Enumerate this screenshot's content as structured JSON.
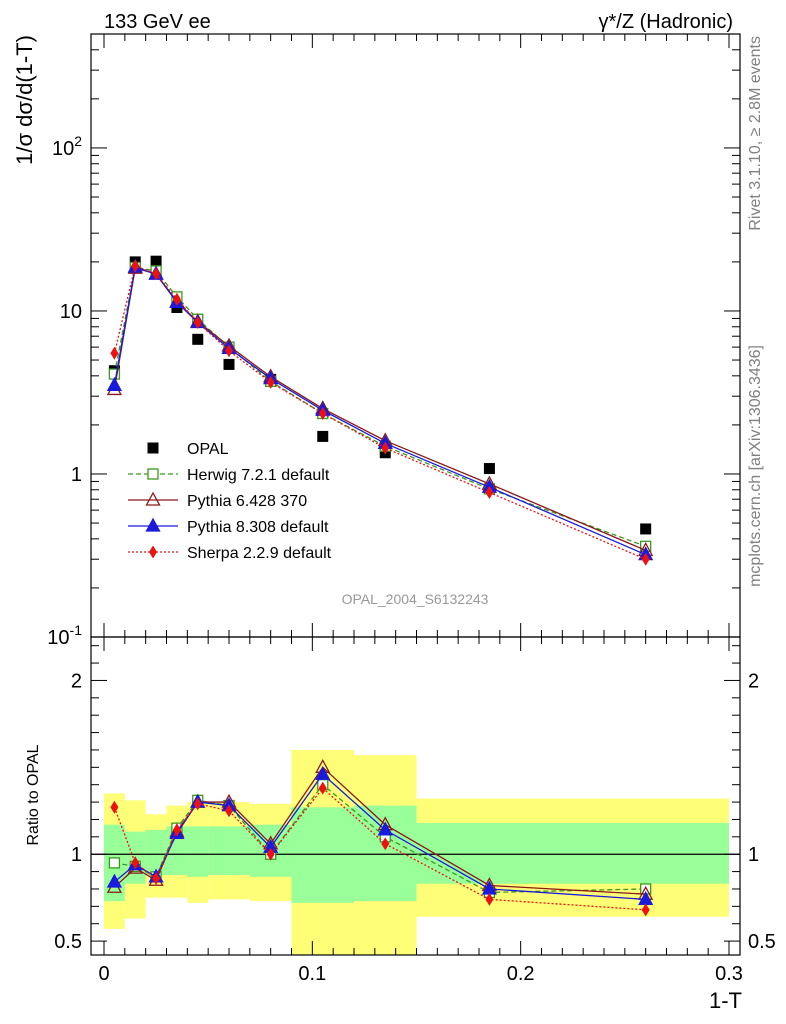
{
  "header": {
    "left": "133 GeV ee",
    "right": "γ*/Z (Hadronic)"
  },
  "side_labels": {
    "rivet": "Rivet 3.1.10, ≥ 2.8M events",
    "mcplots": "mcplots.cern.ch [arXiv:1306.3436]"
  },
  "chart_data": [
    {
      "type": "scatter",
      "panel": "main",
      "ylabel": "1/σ dσ/d(1-T)",
      "yscale": "log",
      "ylim": [
        0.1,
        500
      ],
      "xlim": [
        -0.007,
        0.3
      ],
      "y_tick_labels": [
        "10^-1",
        "1",
        "10",
        "10^2"
      ],
      "watermark": "OPAL_2004_S6132243",
      "legend_position": "bottom-left",
      "x": [
        0.005,
        0.015,
        0.025,
        0.035,
        0.045,
        0.06,
        0.08,
        0.105,
        0.135,
        0.185,
        0.26
      ],
      "series": [
        {
          "name": "OPAL",
          "color": "#000000",
          "marker": "square",
          "values": [
            4.3,
            20.0,
            20.2,
            10.5,
            6.7,
            4.7,
            3.8,
            1.7,
            1.35,
            1.08,
            0.46
          ]
        },
        {
          "name": "Herwig 7.2.1 default",
          "color": "#3a9a1e",
          "marker": "open-square",
          "line": "dashed",
          "values": [
            4.1,
            18.5,
            17.6,
            12.2,
            8.9,
            6.0,
            3.7,
            2.35,
            1.48,
            0.81,
            0.36
          ]
        },
        {
          "name": "Pythia 6.428 370",
          "color": "#8b1a1a",
          "marker": "open-triangle",
          "line": "solid",
          "values": [
            3.3,
            18.3,
            16.9,
            11.4,
            8.6,
            6.1,
            3.95,
            2.52,
            1.6,
            0.87,
            0.34
          ]
        },
        {
          "name": "Pythia 8.308 default",
          "color": "#1a1adb",
          "marker": "triangle",
          "line": "solid",
          "values": [
            3.5,
            18.6,
            16.8,
            11.3,
            8.5,
            5.9,
            3.85,
            2.46,
            1.54,
            0.83,
            0.32
          ]
        },
        {
          "name": "Sherpa 2.2.9 default",
          "color": "#ee1111",
          "marker": "diamond",
          "line": "dotted",
          "values": [
            5.5,
            18.9,
            16.9,
            11.8,
            8.5,
            5.7,
            3.65,
            2.35,
            1.44,
            0.77,
            0.3
          ]
        }
      ]
    },
    {
      "type": "scatter",
      "panel": "ratio",
      "ylabel": "Ratio to OPAL",
      "xlabel": "1-T",
      "ylim": [
        0.42,
        2.25
      ],
      "xlim": [
        -0.007,
        0.3
      ],
      "y_ticks": [
        0.5,
        1,
        2
      ],
      "y_tick_labels": [
        "0.5",
        "1",
        "2"
      ],
      "x_ticks": [
        0,
        0.1,
        0.2,
        0.3
      ],
      "x_tick_labels": [
        "0",
        "0.1",
        "0.2",
        "0.3"
      ],
      "reference_line": 1,
      "bands": {
        "x_edges": [
          0,
          0.01,
          0.02,
          0.03,
          0.04,
          0.05,
          0.07,
          0.09,
          0.12,
          0.15,
          0.3
        ],
        "inner": {
          "color": "#99ff99",
          "low": [
            0.73,
            0.83,
            0.88,
            0.88,
            0.87,
            0.88,
            0.87,
            0.72,
            0.73,
            0.83
          ],
          "high": [
            1.17,
            1.13,
            1.14,
            1.16,
            1.16,
            1.16,
            1.17,
            1.27,
            1.28,
            1.18
          ]
        },
        "outer": {
          "color": "#ffff77",
          "low": [
            0.57,
            0.63,
            0.75,
            0.75,
            0.72,
            0.74,
            0.73,
            0.33,
            0.36,
            0.64
          ],
          "high": [
            1.35,
            1.31,
            1.23,
            1.28,
            1.3,
            1.3,
            1.29,
            1.6,
            1.57,
            1.32
          ]
        }
      },
      "x": [
        0.005,
        0.015,
        0.025,
        0.035,
        0.045,
        0.06,
        0.08,
        0.105,
        0.135,
        0.185,
        0.26
      ],
      "series": [
        {
          "name": "Herwig 7.2.1 default",
          "color": "#3a9a1e",
          "marker": "open-square",
          "line": "dashed",
          "values": [
            0.95,
            0.93,
            0.87,
            1.15,
            1.31,
            1.28,
            1.0,
            1.4,
            1.1,
            0.78,
            0.8
          ]
        },
        {
          "name": "Pythia 6.428 370",
          "color": "#8b1a1a",
          "marker": "open-triangle",
          "line": "solid",
          "values": [
            0.81,
            0.92,
            0.85,
            1.13,
            1.3,
            1.3,
            1.06,
            1.5,
            1.17,
            0.82,
            0.77
          ]
        },
        {
          "name": "Pythia 8.308 default",
          "color": "#1a1adb",
          "marker": "triangle",
          "line": "solid",
          "values": [
            0.84,
            0.94,
            0.87,
            1.12,
            1.3,
            1.28,
            1.04,
            1.46,
            1.14,
            0.8,
            0.74
          ]
        },
        {
          "name": "Sherpa 2.2.9 default",
          "color": "#ee1111",
          "marker": "diamond",
          "line": "dotted",
          "values": [
            1.27,
            0.95,
            0.86,
            1.14,
            1.29,
            1.25,
            1.0,
            1.38,
            1.06,
            0.74,
            0.68
          ]
        }
      ]
    }
  ]
}
